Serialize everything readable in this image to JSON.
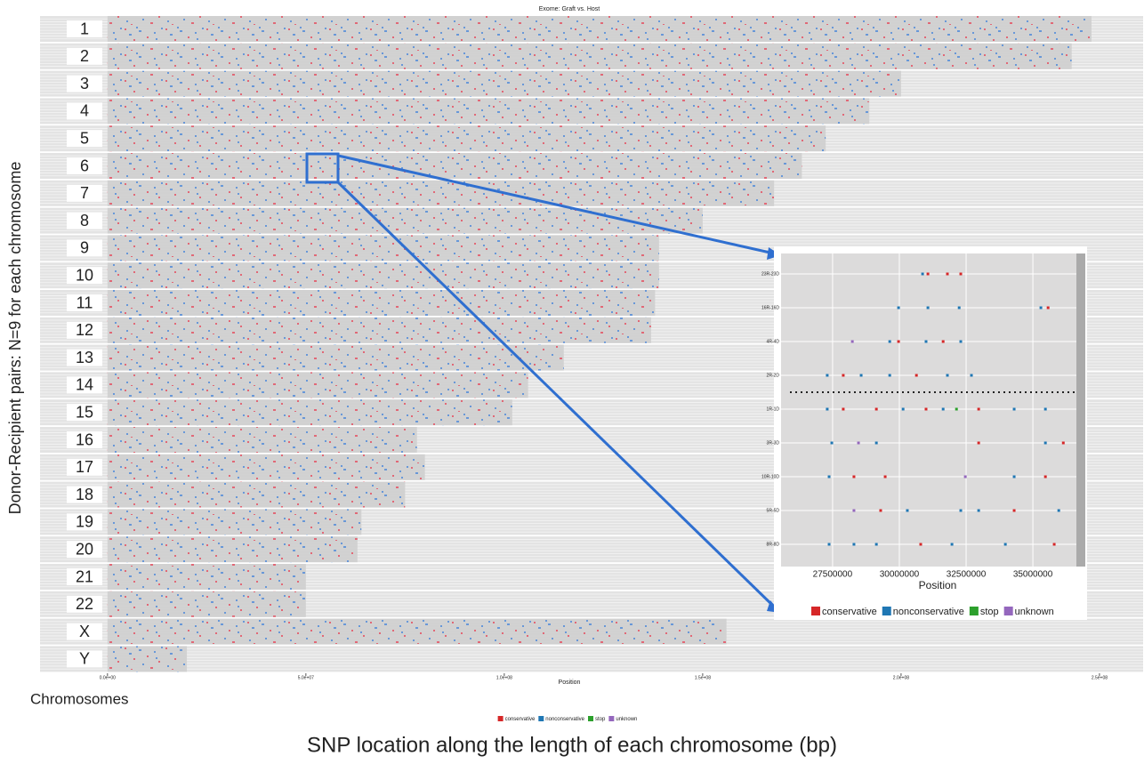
{
  "chart_data": [
    {
      "type": "strip",
      "title": "Exome: Graft vs. Host",
      "xlabel": "Position",
      "ylabel": "Donor-Recipient pairs: N=9 for each chromosome",
      "category_axis_label": "Chromosomes",
      "caption": "SNP location along the length of each chromosome (bp)",
      "categories": [
        "1",
        "2",
        "3",
        "4",
        "5",
        "6",
        "7",
        "8",
        "9",
        "10",
        "11",
        "12",
        "13",
        "14",
        "15",
        "16",
        "17",
        "18",
        "19",
        "20",
        "21",
        "22",
        "X",
        "Y"
      ],
      "values": [
        248000000,
        243000000,
        200000000,
        192000000,
        181000000,
        175000000,
        168000000,
        150000000,
        139000000,
        139000000,
        138000000,
        137000000,
        115000000,
        106000000,
        102000000,
        78000000,
        80000000,
        75000000,
        64000000,
        63000000,
        50000000,
        50000000,
        156000000,
        20000000
      ],
      "xlim": [
        -17000000,
        261000000
      ],
      "xticks": [
        {
          "value": 0,
          "label": "0.0e+00"
        },
        {
          "value": 50000000,
          "label": "5.0e+07"
        },
        {
          "value": 100000000,
          "label": "1.0e+08"
        },
        {
          "value": 150000000,
          "label": "1.5e+08"
        },
        {
          "value": 200000000,
          "label": "2.0e+08"
        },
        {
          "value": 250000000,
          "label": "2.5e+08"
        }
      ]
    },
    {
      "type": "scatter",
      "xlabel": "Position",
      "categories": [
        "23R-23D",
        "16R-16D",
        "4R-4D",
        "2R-2D",
        "1R-1D",
        "3R-3D",
        "10R-10D",
        "5R-5D",
        "8R-8D"
      ],
      "xlim": [
        25570000,
        36630000
      ],
      "xticks": [
        27500000,
        30000000,
        32500000,
        35000000
      ],
      "series": [
        {
          "name": "conservative",
          "color": "#d62728",
          "x": [
            31070000,
            31800000,
            32300000,
            35570000,
            29970000,
            31640000,
            27900000,
            30640000,
            27900000,
            29140000,
            31000000,
            32970000,
            32970000,
            36140000,
            28300000,
            29470000,
            35470000,
            29300000,
            34300000,
            30800000,
            35800000
          ],
          "y": [
            "23R-23D",
            "23R-23D",
            "23R-23D",
            "16R-16D",
            "4R-4D",
            "4R-4D",
            "2R-2D",
            "2R-2D",
            "1R-1D",
            "1R-1D",
            "1R-1D",
            "1R-1D",
            "3R-3D",
            "3R-3D",
            "10R-10D",
            "10R-10D",
            "10R-10D",
            "5R-5D",
            "5R-5D",
            "8R-8D",
            "8R-8D"
          ]
        },
        {
          "name": "nonconservative",
          "color": "#1f77b4",
          "x": [
            30870000,
            29970000,
            31070000,
            32240000,
            35300000,
            29640000,
            31000000,
            32300000,
            27300000,
            28570000,
            29640000,
            31800000,
            32700000,
            27300000,
            30140000,
            31640000,
            34300000,
            35470000,
            27470000,
            29140000,
            35470000,
            27370000,
            34300000,
            30300000,
            32300000,
            32970000,
            35970000,
            27370000,
            28300000,
            29140000,
            31970000,
            33970000
          ],
          "y": [
            "23R-23D",
            "16R-16D",
            "16R-16D",
            "16R-16D",
            "16R-16D",
            "4R-4D",
            "4R-4D",
            "4R-4D",
            "2R-2D",
            "2R-2D",
            "2R-2D",
            "2R-2D",
            "2R-2D",
            "1R-1D",
            "1R-1D",
            "1R-1D",
            "1R-1D",
            "1R-1D",
            "3R-3D",
            "3R-3D",
            "3R-3D",
            "10R-10D",
            "10R-10D",
            "5R-5D",
            "5R-5D",
            "5R-5D",
            "5R-5D",
            "8R-8D",
            "8R-8D",
            "8R-8D",
            "8R-8D",
            "8R-8D"
          ]
        },
        {
          "name": "stop",
          "color": "#2ca02c",
          "x": [
            32140000
          ],
          "y": [
            "1R-1D"
          ]
        },
        {
          "name": "unknown",
          "color": "#9467bd",
          "x": [
            28240000,
            28470000,
            32470000,
            28300000
          ],
          "y": [
            "4R-4D",
            "3R-3D",
            "10R-10D",
            "5R-5D"
          ]
        }
      ]
    }
  ]
}
